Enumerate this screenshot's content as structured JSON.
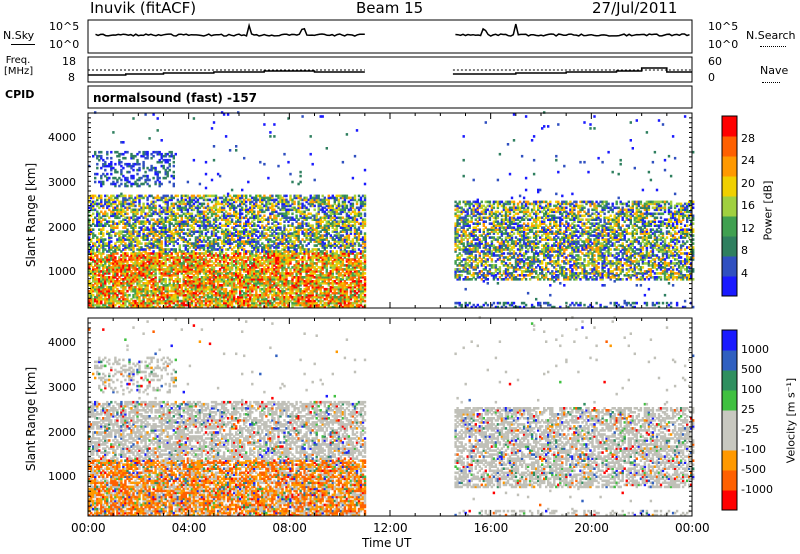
{
  "header": {
    "station": "Inuvik (fitACF)",
    "beam": "Beam 15",
    "date": "27/Jul/2011"
  },
  "panels": {
    "nsky": {
      "label": "N.Sky",
      "ticks": [
        "10^5",
        "10^0"
      ],
      "right_ticks": [
        "10^5",
        "10^0"
      ],
      "right_label": "N.Search"
    },
    "freq": {
      "label": "Freq. [MHz]",
      "ticks": [
        "18",
        "8"
      ],
      "right_ticks": [
        "60",
        "0"
      ],
      "right_label": "Nave"
    },
    "cpid": {
      "label": "CPID",
      "text": "normalsound (fast) -157"
    }
  },
  "colors": {
    "power_scale": [
      "#1a1aff",
      "#3050c0",
      "#2f7f5f",
      "#40a050",
      "#a0d040",
      "#f0d000",
      "#ff9900",
      "#ff6000",
      "#ff0000"
    ],
    "velocity_scale": [
      "#ff0000",
      "#ff6000",
      "#ff9900",
      "#c8c8c0",
      "#c8c8c0",
      "#40c040",
      "#2f8f5f",
      "#3060c0",
      "#1a1aff"
    ],
    "groundscatter": "#c0c0b8"
  },
  "chart_data": [
    {
      "type": "heatmap",
      "name": "power",
      "title": "",
      "xlabel": "Time UT",
      "ylabel": "Slant Range [km]",
      "x_ticks": [
        "00:00",
        "04:00",
        "08:00",
        "12:00",
        "16:00",
        "20:00",
        "00:00"
      ],
      "y_ticks": [
        "1000",
        "2000",
        "3000",
        "4000"
      ],
      "xlim": [
        0,
        24
      ],
      "ylim": [
        180,
        4600
      ],
      "colorbar_label": "Power [dB]",
      "colorbar_ticks": [
        "4",
        "8",
        "12",
        "16",
        "20",
        "24",
        "28"
      ],
      "data_gap_hours": [
        11,
        14.5
      ],
      "echo_regions": [
        {
          "t0": 0,
          "t1": 11,
          "r0": 180,
          "r1": 700,
          "level": "strong"
        },
        {
          "t0": 0,
          "t1": 11,
          "r0": 700,
          "r1": 1400,
          "level": "strong"
        },
        {
          "t0": 0,
          "t1": 11,
          "r0": 1400,
          "r1": 2700,
          "level": "medium"
        },
        {
          "t0": 0.2,
          "t1": 3.5,
          "r0": 2900,
          "r1": 3700,
          "level": "weak"
        },
        {
          "t0": 14.5,
          "t1": 24,
          "r0": 180,
          "r1": 300,
          "level": "weak"
        },
        {
          "t0": 14.5,
          "t1": 24,
          "r0": 800,
          "r1": 2600,
          "level": "medium"
        }
      ]
    },
    {
      "type": "heatmap",
      "name": "velocity",
      "title": "",
      "xlabel": "Time UT",
      "ylabel": "Slant Range [km]",
      "x_ticks": [
        "00:00",
        "04:00",
        "08:00",
        "12:00",
        "16:00",
        "20:00",
        "00:00"
      ],
      "y_ticks": [
        "1000",
        "2000",
        "3000",
        "4000"
      ],
      "xlim": [
        0,
        24
      ],
      "ylim": [
        180,
        4600
      ],
      "colorbar_label": "Velocity [m s⁻¹]",
      "colorbar_ticks": [
        "1000",
        "500",
        "100",
        "25",
        "-25",
        "-100",
        "-500",
        "-1000"
      ],
      "data_gap_hours": [
        11,
        14.5
      ]
    }
  ],
  "timeseries": {
    "nsky_gap": [
      11,
      14.5
    ],
    "freq_steps": [
      {
        "t": 0,
        "v": 10.5
      },
      {
        "t": 1.5,
        "v": 11
      },
      {
        "t": 3,
        "v": 11.5
      },
      {
        "t": 5,
        "v": 12
      },
      {
        "t": 7,
        "v": 12.5
      },
      {
        "t": 9,
        "v": 12
      },
      {
        "t": 11,
        "v": 12
      },
      {
        "t": 14.5,
        "v": 11
      },
      {
        "t": 17,
        "v": 11.5
      },
      {
        "t": 19,
        "v": 12
      },
      {
        "t": 21,
        "v": 12.5
      },
      {
        "t": 22,
        "v": 14
      },
      {
        "t": 23,
        "v": 12
      }
    ]
  }
}
